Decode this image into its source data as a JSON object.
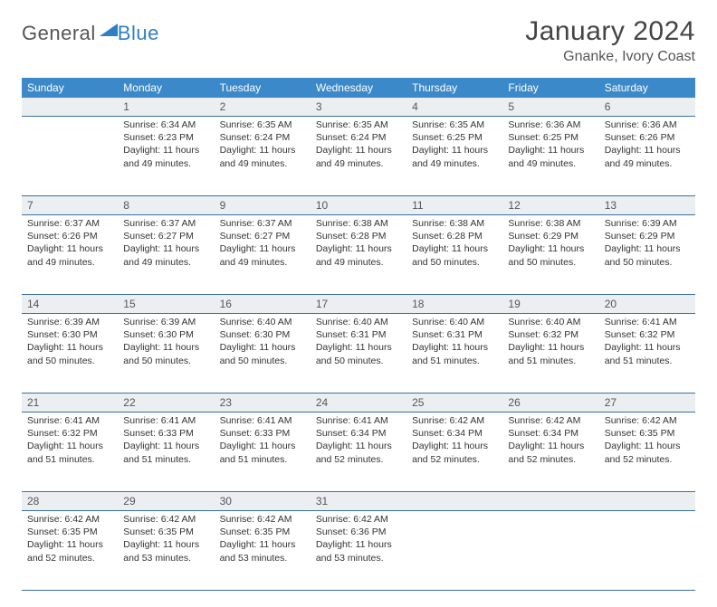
{
  "logo": {
    "text_general": "General",
    "text_blue": "Blue"
  },
  "title": "January 2024",
  "location": "Gnanke, Ivory Coast",
  "colors": {
    "header_bg": "#3b89c9",
    "header_text": "#ffffff",
    "daynum_bg": "#eceff1",
    "week_border": "#2f6fa8",
    "logo_blue": "#2f7fc2"
  },
  "day_headers": [
    "Sunday",
    "Monday",
    "Tuesday",
    "Wednesday",
    "Thursday",
    "Friday",
    "Saturday"
  ],
  "weeks": [
    [
      {
        "n": "",
        "sr": "",
        "ss": "",
        "dl": ""
      },
      {
        "n": "1",
        "sr": "Sunrise: 6:34 AM",
        "ss": "Sunset: 6:23 PM",
        "dl": "Daylight: 11 hours and 49 minutes."
      },
      {
        "n": "2",
        "sr": "Sunrise: 6:35 AM",
        "ss": "Sunset: 6:24 PM",
        "dl": "Daylight: 11 hours and 49 minutes."
      },
      {
        "n": "3",
        "sr": "Sunrise: 6:35 AM",
        "ss": "Sunset: 6:24 PM",
        "dl": "Daylight: 11 hours and 49 minutes."
      },
      {
        "n": "4",
        "sr": "Sunrise: 6:35 AM",
        "ss": "Sunset: 6:25 PM",
        "dl": "Daylight: 11 hours and 49 minutes."
      },
      {
        "n": "5",
        "sr": "Sunrise: 6:36 AM",
        "ss": "Sunset: 6:25 PM",
        "dl": "Daylight: 11 hours and 49 minutes."
      },
      {
        "n": "6",
        "sr": "Sunrise: 6:36 AM",
        "ss": "Sunset: 6:26 PM",
        "dl": "Daylight: 11 hours and 49 minutes."
      }
    ],
    [
      {
        "n": "7",
        "sr": "Sunrise: 6:37 AM",
        "ss": "Sunset: 6:26 PM",
        "dl": "Daylight: 11 hours and 49 minutes."
      },
      {
        "n": "8",
        "sr": "Sunrise: 6:37 AM",
        "ss": "Sunset: 6:27 PM",
        "dl": "Daylight: 11 hours and 49 minutes."
      },
      {
        "n": "9",
        "sr": "Sunrise: 6:37 AM",
        "ss": "Sunset: 6:27 PM",
        "dl": "Daylight: 11 hours and 49 minutes."
      },
      {
        "n": "10",
        "sr": "Sunrise: 6:38 AM",
        "ss": "Sunset: 6:28 PM",
        "dl": "Daylight: 11 hours and 49 minutes."
      },
      {
        "n": "11",
        "sr": "Sunrise: 6:38 AM",
        "ss": "Sunset: 6:28 PM",
        "dl": "Daylight: 11 hours and 50 minutes."
      },
      {
        "n": "12",
        "sr": "Sunrise: 6:38 AM",
        "ss": "Sunset: 6:29 PM",
        "dl": "Daylight: 11 hours and 50 minutes."
      },
      {
        "n": "13",
        "sr": "Sunrise: 6:39 AM",
        "ss": "Sunset: 6:29 PM",
        "dl": "Daylight: 11 hours and 50 minutes."
      }
    ],
    [
      {
        "n": "14",
        "sr": "Sunrise: 6:39 AM",
        "ss": "Sunset: 6:30 PM",
        "dl": "Daylight: 11 hours and 50 minutes."
      },
      {
        "n": "15",
        "sr": "Sunrise: 6:39 AM",
        "ss": "Sunset: 6:30 PM",
        "dl": "Daylight: 11 hours and 50 minutes."
      },
      {
        "n": "16",
        "sr": "Sunrise: 6:40 AM",
        "ss": "Sunset: 6:30 PM",
        "dl": "Daylight: 11 hours and 50 minutes."
      },
      {
        "n": "17",
        "sr": "Sunrise: 6:40 AM",
        "ss": "Sunset: 6:31 PM",
        "dl": "Daylight: 11 hours and 50 minutes."
      },
      {
        "n": "18",
        "sr": "Sunrise: 6:40 AM",
        "ss": "Sunset: 6:31 PM",
        "dl": "Daylight: 11 hours and 51 minutes."
      },
      {
        "n": "19",
        "sr": "Sunrise: 6:40 AM",
        "ss": "Sunset: 6:32 PM",
        "dl": "Daylight: 11 hours and 51 minutes."
      },
      {
        "n": "20",
        "sr": "Sunrise: 6:41 AM",
        "ss": "Sunset: 6:32 PM",
        "dl": "Daylight: 11 hours and 51 minutes."
      }
    ],
    [
      {
        "n": "21",
        "sr": "Sunrise: 6:41 AM",
        "ss": "Sunset: 6:32 PM",
        "dl": "Daylight: 11 hours and 51 minutes."
      },
      {
        "n": "22",
        "sr": "Sunrise: 6:41 AM",
        "ss": "Sunset: 6:33 PM",
        "dl": "Daylight: 11 hours and 51 minutes."
      },
      {
        "n": "23",
        "sr": "Sunrise: 6:41 AM",
        "ss": "Sunset: 6:33 PM",
        "dl": "Daylight: 11 hours and 51 minutes."
      },
      {
        "n": "24",
        "sr": "Sunrise: 6:41 AM",
        "ss": "Sunset: 6:34 PM",
        "dl": "Daylight: 11 hours and 52 minutes."
      },
      {
        "n": "25",
        "sr": "Sunrise: 6:42 AM",
        "ss": "Sunset: 6:34 PM",
        "dl": "Daylight: 11 hours and 52 minutes."
      },
      {
        "n": "26",
        "sr": "Sunrise: 6:42 AM",
        "ss": "Sunset: 6:34 PM",
        "dl": "Daylight: 11 hours and 52 minutes."
      },
      {
        "n": "27",
        "sr": "Sunrise: 6:42 AM",
        "ss": "Sunset: 6:35 PM",
        "dl": "Daylight: 11 hours and 52 minutes."
      }
    ],
    [
      {
        "n": "28",
        "sr": "Sunrise: 6:42 AM",
        "ss": "Sunset: 6:35 PM",
        "dl": "Daylight: 11 hours and 52 minutes."
      },
      {
        "n": "29",
        "sr": "Sunrise: 6:42 AM",
        "ss": "Sunset: 6:35 PM",
        "dl": "Daylight: 11 hours and 53 minutes."
      },
      {
        "n": "30",
        "sr": "Sunrise: 6:42 AM",
        "ss": "Sunset: 6:35 PM",
        "dl": "Daylight: 11 hours and 53 minutes."
      },
      {
        "n": "31",
        "sr": "Sunrise: 6:42 AM",
        "ss": "Sunset: 6:36 PM",
        "dl": "Daylight: 11 hours and 53 minutes."
      },
      {
        "n": "",
        "sr": "",
        "ss": "",
        "dl": ""
      },
      {
        "n": "",
        "sr": "",
        "ss": "",
        "dl": ""
      },
      {
        "n": "",
        "sr": "",
        "ss": "",
        "dl": ""
      }
    ]
  ]
}
